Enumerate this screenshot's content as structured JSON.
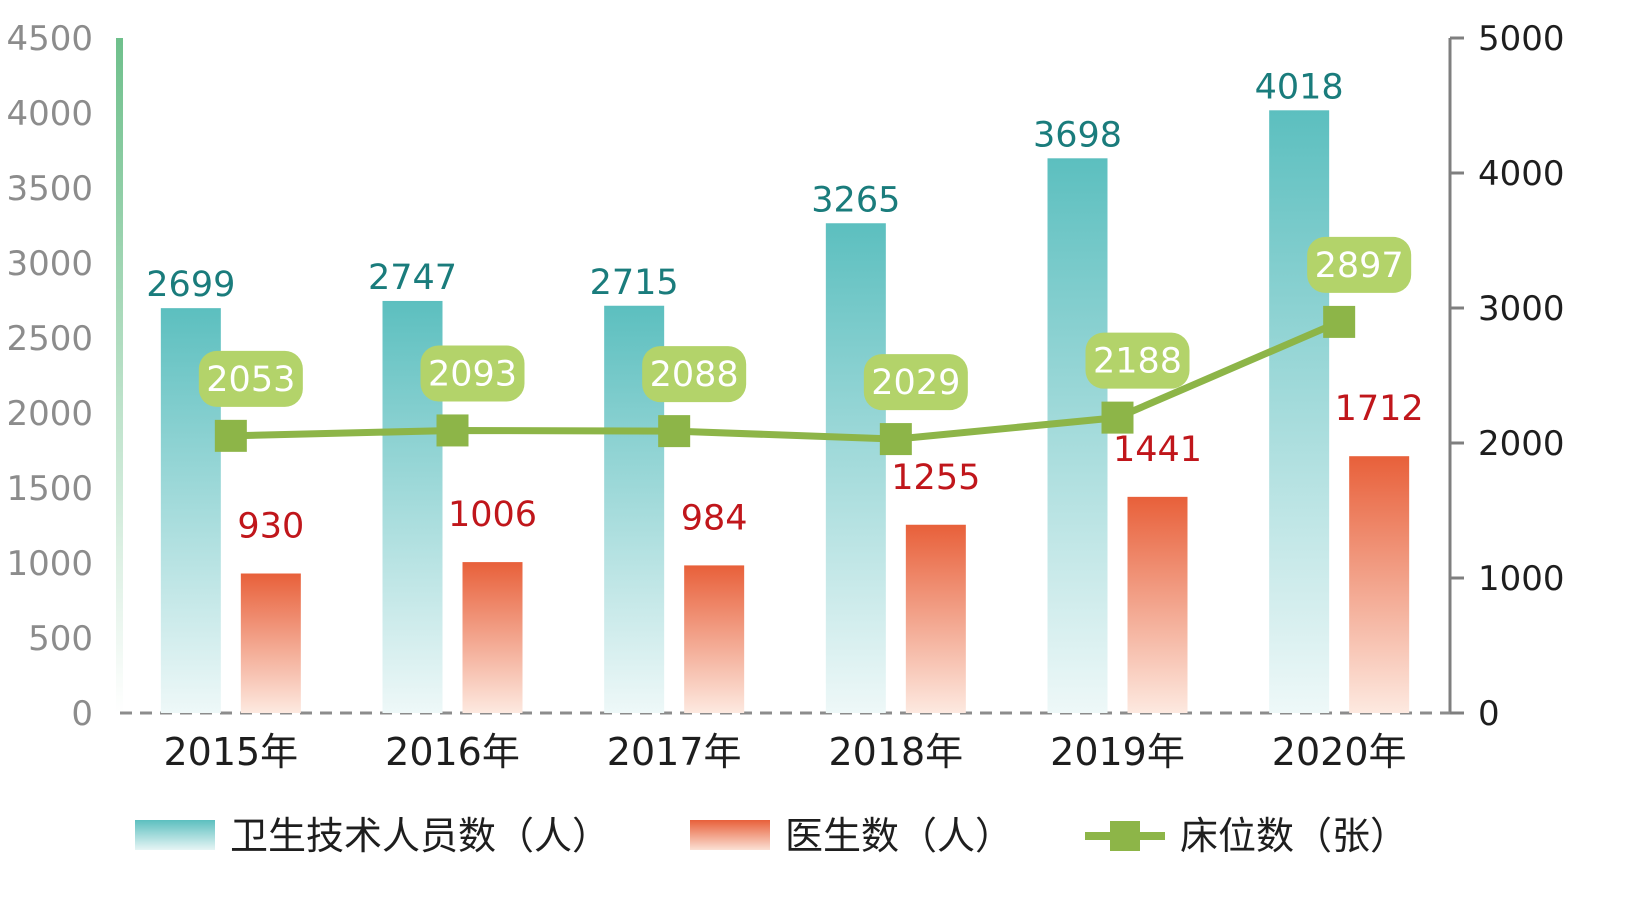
{
  "chart_data": {
    "type": "bar",
    "categories": [
      "2015年",
      "2016年",
      "2017年",
      "2018年",
      "2019年",
      "2020年"
    ],
    "series": [
      {
        "name": "卫生技术人员数（人）",
        "type": "bar",
        "axis": "left",
        "values": [
          2699,
          2747,
          2715,
          3265,
          3698,
          4018
        ]
      },
      {
        "name": "医生数（人）",
        "type": "bar",
        "axis": "left",
        "values": [
          930,
          1006,
          984,
          1255,
          1441,
          1712
        ]
      },
      {
        "name": "床位数（张）",
        "type": "line",
        "axis": "right",
        "values": [
          2053,
          2093,
          2088,
          2029,
          2188,
          2897
        ]
      }
    ],
    "y_left": {
      "ylim": [
        0,
        4500
      ],
      "ticks": [
        0,
        500,
        1000,
        1500,
        2000,
        2500,
        3000,
        3500,
        4000,
        4500
      ]
    },
    "y_right": {
      "ylim": [
        0,
        5000
      ],
      "ticks": [
        0,
        1000,
        2000,
        3000,
        4000,
        5000
      ]
    },
    "data_labels": true,
    "legend_position": "bottom",
    "colors": {
      "bar_teal_top": "#5cbfbf",
      "bar_teal_bottom": "#eef8f8",
      "bar_orange_top": "#e8603a",
      "bar_orange_bottom": "#fbe6dc",
      "line_green": "#8db548",
      "label_box_green": "#b3d36a",
      "label_teal": "#1a7c7c",
      "label_red": "#c0161b",
      "left_axis_green": "#6fc08c"
    }
  }
}
